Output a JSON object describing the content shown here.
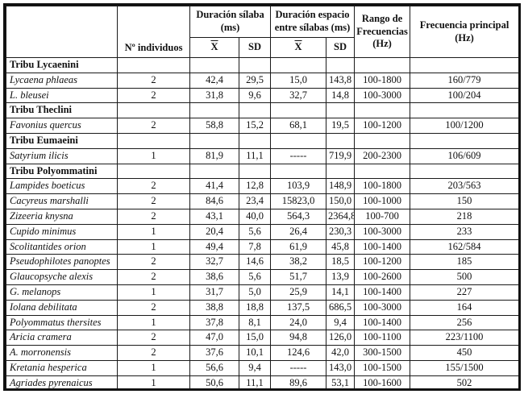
{
  "table": {
    "header": {
      "corner": "",
      "individuals": "Nº individuos",
      "syllable_group_line1": "Duración sílaba",
      "syllable_group_line2": "(ms)",
      "space_group_line1": "Duración espacio",
      "space_group_line2": "entre sílabas (ms)",
      "mean_symbol": "X",
      "sd_label": "SD",
      "range_line1": "Rango de",
      "range_line2": "Frecuencias",
      "range_line3": "(Hz)",
      "principal_line1": "Frecuencia principal",
      "principal_line2": "(Hz)"
    },
    "columns": [
      "n-individuals",
      "syllable-mean",
      "syllable-sd",
      "space-mean",
      "space-sd",
      "freq-range",
      "main-freq"
    ],
    "rows": [
      {
        "type": "tribe",
        "name": "Tribu Lycaenini",
        "values": [
          "",
          "",
          "",
          "",
          "",
          "",
          ""
        ]
      },
      {
        "type": "species",
        "name": "Lycaena phlaeas",
        "values": [
          "2",
          "42,4",
          "29,5",
          "15,0",
          "143,8",
          "100-1800",
          "160/779"
        ]
      },
      {
        "type": "species",
        "name": "L. bleusei",
        "values": [
          "2",
          "31,8",
          "9,6",
          "32,7",
          "14,8",
          "100-3000",
          "100/204"
        ]
      },
      {
        "type": "tribe",
        "name": "Tribu Theclini",
        "values": [
          "",
          "",
          "",
          "",
          "",
          "",
          ""
        ]
      },
      {
        "type": "species",
        "name": "Favonius quercus",
        "values": [
          "2",
          "58,8",
          "15,2",
          "68,1",
          "19,5",
          "100-1200",
          "100/1200"
        ]
      },
      {
        "type": "tribe",
        "name": "Tribu Eumaeini",
        "values": [
          "",
          "",
          "",
          "",
          "",
          "",
          ""
        ]
      },
      {
        "type": "species",
        "name": "Satyrium ilicis",
        "values": [
          "1",
          "81,9",
          "11,1",
          "-----",
          "719,9",
          "200-2300",
          "106/609"
        ]
      },
      {
        "type": "tribe",
        "name": "Tribu Polyommatini",
        "values": [
          "",
          "",
          "",
          "",
          "",
          "",
          ""
        ]
      },
      {
        "type": "species",
        "name": "Lampides boeticus",
        "values": [
          "2",
          "41,4",
          "12,8",
          "103,9",
          "148,9",
          "100-1800",
          "203/563"
        ]
      },
      {
        "type": "species",
        "name": "Cacyreus marshalli",
        "values": [
          "2",
          "84,6",
          "23,4",
          "15823,0",
          "150,0",
          "100-1000",
          "150"
        ]
      },
      {
        "type": "species",
        "name": "Zizeeria knysna",
        "values": [
          "2",
          "43,1",
          "40,0",
          "564,3",
          "2364,8",
          "100-700",
          "218"
        ]
      },
      {
        "type": "species",
        "name": "Cupido minimus",
        "values": [
          "1",
          "20,4",
          "5,6",
          "26,4",
          "230,3",
          "100-3000",
          "233"
        ]
      },
      {
        "type": "species",
        "name": "Scolitantides orion",
        "values": [
          "1",
          "49,4",
          "7,8",
          "61,9",
          "45,8",
          "100-1400",
          "162/584"
        ]
      },
      {
        "type": "species",
        "name": "Pseudophilotes panoptes",
        "values": [
          "2",
          "32,7",
          "14,6",
          "38,2",
          "18,5",
          "100-1200",
          "185"
        ]
      },
      {
        "type": "species",
        "name": "Glaucopsyche alexis",
        "values": [
          "2",
          "38,6",
          "5,6",
          "51,7",
          "13,9",
          "100-2600",
          "500"
        ]
      },
      {
        "type": "species",
        "name": "G. melanops",
        "values": [
          "1",
          "31,7",
          "5,0",
          "25,9",
          "14,1",
          "100-1400",
          "227"
        ]
      },
      {
        "type": "species",
        "name": "Iolana debilitata",
        "values": [
          "2",
          "38,8",
          "18,8",
          "137,5",
          "686,5",
          "100-3000",
          "164"
        ]
      },
      {
        "type": "species",
        "name": "Polyommatus thersites",
        "values": [
          "1",
          "37,8",
          "8,1",
          "24,0",
          "9,4",
          "100-1400",
          "256"
        ]
      },
      {
        "type": "species",
        "name": "Aricia cramera",
        "values": [
          "2",
          "47,0",
          "15,0",
          "94,8",
          "126,0",
          "100-1100",
          "223/1100"
        ]
      },
      {
        "type": "species",
        "name": "A. morronensis",
        "values": [
          "2",
          "37,6",
          "10,1",
          "124,6",
          "42,0",
          "300-1500",
          "450"
        ]
      },
      {
        "type": "species",
        "name": "Kretania hesperica",
        "values": [
          "1",
          "56,6",
          "9,4",
          "-----",
          "143,0",
          "100-1500",
          "155/1500"
        ]
      },
      {
        "type": "species",
        "name": "Agriades pyrenaicus",
        "values": [
          "1",
          "50,6",
          "11,1",
          "89,6",
          "53,1",
          "100-1600",
          "502"
        ]
      }
    ]
  }
}
